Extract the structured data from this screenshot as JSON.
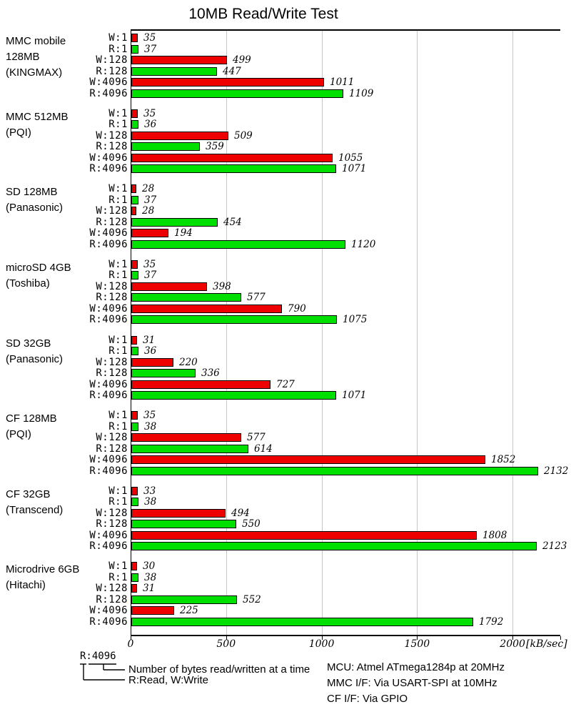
{
  "chart_data": {
    "type": "bar",
    "orientation": "horizontal",
    "title": "10MB Read/Write Test",
    "x_unit_label": "[kB/sec]",
    "xlim": [
      0,
      2250
    ],
    "x_ticks": [
      0,
      500,
      1000,
      1500,
      2000
    ],
    "grid": true,
    "legend_position": "none",
    "row_labels": [
      "W:1",
      "R:1",
      "W:128",
      "R:128",
      "W:4096",
      "R:4096"
    ],
    "row_types": [
      "write",
      "read",
      "write",
      "read",
      "write",
      "read"
    ],
    "series_colors": {
      "write": "#ee0000",
      "read": "#00e000"
    },
    "grid_color": "#c6c6c6",
    "axis_color": "#000000",
    "groups": [
      {
        "device_lines": [
          "MMC mobile",
          "128MB",
          "(KINGMAX)"
        ],
        "values": [
          35,
          37,
          499,
          447,
          1011,
          1109
        ]
      },
      {
        "device_lines": [
          "MMC 512MB",
          "(PQI)"
        ],
        "values": [
          35,
          36,
          509,
          359,
          1055,
          1071
        ]
      },
      {
        "device_lines": [
          "SD 128MB",
          "(Panasonic)"
        ],
        "values": [
          28,
          37,
          28,
          454,
          194,
          1120
        ]
      },
      {
        "device_lines": [
          "microSD 4GB",
          "(Toshiba)"
        ],
        "values": [
          35,
          37,
          398,
          577,
          790,
          1075
        ]
      },
      {
        "device_lines": [
          "SD 32GB",
          "(Panasonic)"
        ],
        "values": [
          31,
          36,
          220,
          336,
          727,
          1071
        ]
      },
      {
        "device_lines": [
          "CF 128MB",
          "(PQI)"
        ],
        "values": [
          35,
          38,
          577,
          614,
          1852,
          2132
        ]
      },
      {
        "device_lines": [
          "CF 32GB",
          "(Transcend)"
        ],
        "values": [
          33,
          38,
          494,
          550,
          1808,
          2123
        ]
      },
      {
        "device_lines": [
          "Microdrive 6GB",
          "(Hitachi)"
        ],
        "values": [
          30,
          38,
          31,
          552,
          225,
          1792
        ]
      }
    ]
  },
  "legend": {
    "example_label": "R:4096",
    "note_bytes": "Number of bytes read/written at a time",
    "note_rw": "R:Read, W:Write"
  },
  "footer": {
    "mcu": "MCU: Atmel ATmega1284p at 20MHz",
    "mmc_if": "MMC I/F: Via USART-SPI at 10MHz",
    "cf_if": "CF I/F: Via GPIO"
  }
}
